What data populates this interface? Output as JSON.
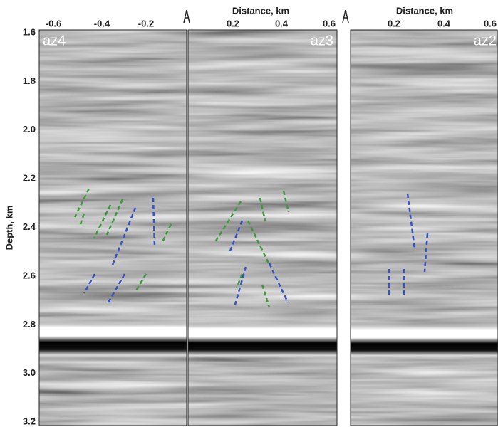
{
  "y_axis": {
    "title": "Depth, km",
    "ticks": [
      "1.6",
      "1.8",
      "2.0",
      "2.2",
      "2.4",
      "2.6",
      "2.8",
      "3.0",
      "3.2"
    ]
  },
  "panels": [
    {
      "label": "az4",
      "x_ticks": [
        "-0.6",
        "-0.4",
        "-0.2"
      ]
    },
    {
      "label": "az3",
      "x_axis_title": "Distance, km",
      "x_ticks": [
        "0.2",
        "0.4",
        "0.6"
      ]
    },
    {
      "label": "az2",
      "x_axis_title": "Distance, km",
      "x_ticks": [
        "0.2",
        "0.4",
        "0.6"
      ]
    }
  ]
}
